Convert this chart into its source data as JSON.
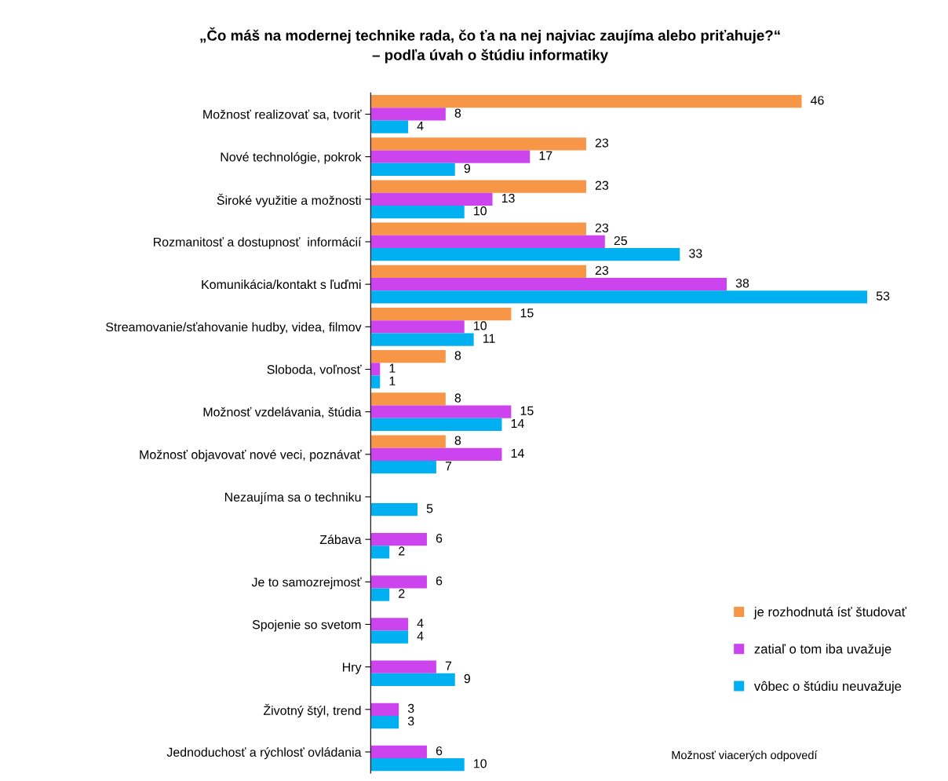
{
  "chart_data": {
    "type": "bar",
    "orientation": "horizontal",
    "title": "„Čo máš na modernej technike rada, čo ťa na nej najviac zaujíma alebo priťahuje?“\n– podľa úvah o štúdiu informatiky",
    "categories": [
      "Možnosť realizovať sa, tvoriť",
      "Nové technológie, pokrok",
      "Široké využitie a možnosti",
      "Rozmanitosť a dostupnosť  informácií",
      "Komunikácia/kontakt s ľuďmi",
      "Streamovanie/sťahovanie hudby, videa, filmov",
      "Sloboda, voľnosť",
      "Možnosť vzdelávania, štúdia",
      "Možnosť objavovať nové veci, poznávať",
      "Nezaujíma sa o techniku",
      "Zábava",
      "Je to samozrejmosť",
      "Spojenie so svetom",
      "Hry",
      "Životný štýl, trend",
      "Jednoduchosť a rýchlosť ovládania"
    ],
    "series": [
      {
        "name": "je rozhodnutá ísť študovať",
        "color": "#f79646",
        "values": [
          46,
          23,
          23,
          23,
          23,
          15,
          8,
          8,
          8,
          null,
          null,
          null,
          null,
          null,
          null,
          null
        ]
      },
      {
        "name": "zatiaľ o tom iba uvažuje",
        "color": "#cc44ee",
        "values": [
          8,
          17,
          13,
          25,
          38,
          10,
          1,
          15,
          14,
          null,
          6,
          6,
          4,
          7,
          3,
          6
        ]
      },
      {
        "name": "vôbec o štúdiu neuvažuje",
        "color": "#00b0f0",
        "values": [
          4,
          9,
          10,
          33,
          53,
          11,
          1,
          14,
          7,
          5,
          2,
          2,
          4,
          9,
          3,
          10
        ]
      }
    ],
    "data_labels": true,
    "legend": "bottom right",
    "grid": false,
    "tick_labels": "y",
    "annotations": [
      "Možnosť viacerých odpovedí"
    ]
  }
}
